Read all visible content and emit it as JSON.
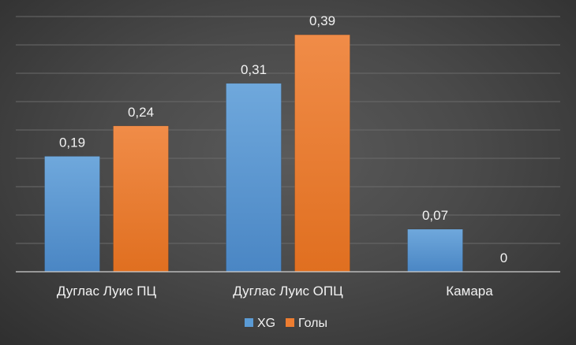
{
  "chart_data": {
    "type": "bar",
    "categories": [
      "Дуглас Луис ПЦ",
      "Дуглас Луис ОПЦ",
      "Камара"
    ],
    "series": [
      {
        "name": "XG",
        "values": [
          0.19,
          0.31,
          0.07
        ],
        "labels": [
          "0,19",
          "0,31",
          "0,07"
        ],
        "color": "#5b9bd5"
      },
      {
        "name": "Голы",
        "values": [
          0.24,
          0.39,
          0
        ],
        "labels": [
          "0,24",
          "0,39",
          "0"
        ],
        "color": "#ed7d31"
      }
    ],
    "ylim": [
      0,
      0.42
    ],
    "grid": true,
    "legend": "bottom",
    "title": "",
    "xlabel": "",
    "ylabel": ""
  },
  "colors": {
    "background": "#474747",
    "gridline": "#6a6a6a",
    "axis": "#cfcfcf",
    "text": "#f2f2f2"
  }
}
